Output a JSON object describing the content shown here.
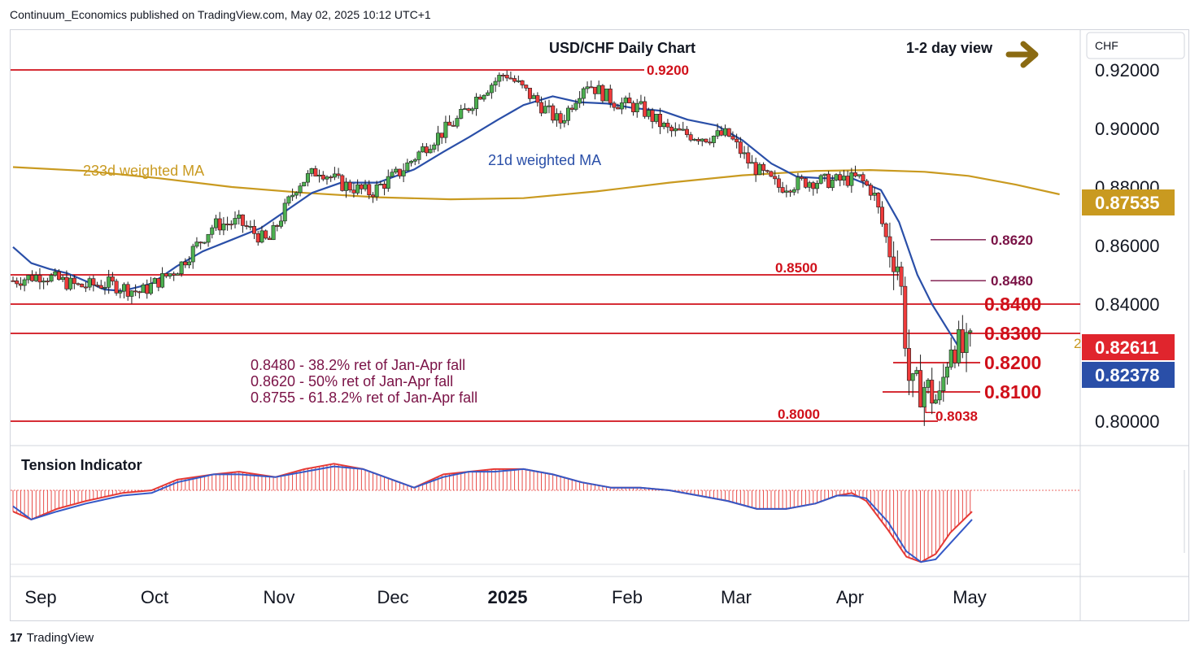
{
  "header": {
    "publisher_line": "Continuum_Economics published on TradingView.com, May 02, 2025 10:12 UTC+1"
  },
  "footer": {
    "brand": "TradingView",
    "logo_glyph": "17"
  },
  "colors": {
    "up_candle": "#4caf50",
    "down_candle": "#ef3b3b",
    "support_resistance": "#d0101a",
    "ma21": "#2a4fa8",
    "ma233": "#c99a20",
    "fib_text": "#7a1246",
    "level_text_small": "#d0101a",
    "arrow": "#8a6a12",
    "tension_red": "#e53935",
    "tension_blue": "#3559c7"
  },
  "chart_data": {
    "type": "candlestick",
    "title": "USD/CHF Daily Chart",
    "view_label": "1-2 day view",
    "currency": "CHF",
    "x_tick_labels": [
      "Sep",
      "Oct",
      "Nov",
      "Dec",
      "2025",
      "Feb",
      "Mar",
      "Apr",
      "May"
    ],
    "y_tick_labels": [
      "0.92000",
      "0.90000",
      "0.88000",
      "0.86000",
      "0.84000",
      "0.80000"
    ],
    "ylim": [
      0.796,
      0.934
    ],
    "price_badges": [
      {
        "label": "0.87535",
        "color": "#c99a20"
      },
      {
        "label": "0.82611",
        "color": "#e0252d"
      },
      {
        "label": "0.82378",
        "color": "#2a4fa8"
      }
    ],
    "levels": [
      {
        "value": 0.92,
        "label": "0.9200"
      },
      {
        "value": 0.85,
        "label": "0.8500"
      },
      {
        "value": 0.84,
        "label": "0.8400"
      },
      {
        "value": 0.83,
        "label": "0.8300"
      },
      {
        "value": 0.82,
        "label": "0.8200"
      },
      {
        "value": 0.81,
        "label": "0.8100"
      },
      {
        "value": 0.8,
        "label": "0.8000"
      },
      {
        "value": 0.8038,
        "label": "0.8038"
      },
      {
        "value": 0.862,
        "label": "0.8620"
      },
      {
        "value": 0.848,
        "label": "0.8480"
      }
    ],
    "annotations": {
      "ma233_label": "233d weighted MA",
      "ma21_label": "21d weighted MA",
      "fib_lines": [
        "0.8480 - 38.2% ret of Jan-Apr fall",
        "0.8620 - 50% ret of Jan-Apr fall",
        "0.8755 - 61.8.2% ret of Jan-Apr fall"
      ],
      "cut_label": "2"
    },
    "indicator": {
      "name": "Tension Indicator"
    },
    "series_ma233": [
      [
        0,
        0.8868
      ],
      [
        20,
        0.8855
      ],
      [
        40,
        0.883
      ],
      [
        60,
        0.88
      ],
      [
        80,
        0.878
      ],
      [
        100,
        0.8765
      ],
      [
        120,
        0.8758
      ],
      [
        140,
        0.8762
      ],
      [
        160,
        0.8785
      ],
      [
        180,
        0.8815
      ],
      [
        200,
        0.884
      ],
      [
        220,
        0.8855
      ],
      [
        235,
        0.8858
      ],
      [
        250,
        0.8852
      ],
      [
        262,
        0.8838
      ],
      [
        275,
        0.8808
      ],
      [
        287,
        0.8775
      ]
    ],
    "series_ma21": [
      [
        0,
        0.8595
      ],
      [
        5,
        0.854
      ],
      [
        10,
        0.852
      ],
      [
        15,
        0.8505
      ],
      [
        20,
        0.8478
      ],
      [
        25,
        0.845
      ],
      [
        30,
        0.8445
      ],
      [
        38,
        0.847
      ],
      [
        45,
        0.853
      ],
      [
        52,
        0.858
      ],
      [
        60,
        0.862
      ],
      [
        68,
        0.866
      ],
      [
        75,
        0.872
      ],
      [
        82,
        0.878
      ],
      [
        90,
        0.8815
      ],
      [
        100,
        0.8815
      ],
      [
        110,
        0.886
      ],
      [
        118,
        0.892
      ],
      [
        125,
        0.897
      ],
      [
        133,
        0.903
      ],
      [
        140,
        0.908
      ],
      [
        148,
        0.911
      ],
      [
        155,
        0.909
      ],
      [
        163,
        0.9085
      ],
      [
        170,
        0.907
      ],
      [
        178,
        0.906
      ],
      [
        185,
        0.903
      ],
      [
        193,
        0.901
      ],
      [
        200,
        0.896
      ],
      [
        208,
        0.888
      ],
      [
        215,
        0.8835
      ],
      [
        222,
        0.883
      ],
      [
        230,
        0.883
      ],
      [
        238,
        0.879
      ],
      [
        243,
        0.868
      ],
      [
        248,
        0.85
      ],
      [
        252,
        0.84
      ],
      [
        256,
        0.832
      ],
      [
        260,
        0.824
      ]
    ],
    "candles_trend": [
      [
        0,
        0.848
      ],
      [
        8,
        0.85
      ],
      [
        18,
        0.846
      ],
      [
        26,
        0.847
      ],
      [
        35,
        0.844
      ],
      [
        45,
        0.852
      ],
      [
        55,
        0.867
      ],
      [
        62,
        0.868
      ],
      [
        70,
        0.861
      ],
      [
        78,
        0.881
      ],
      [
        84,
        0.886
      ],
      [
        90,
        0.881
      ],
      [
        98,
        0.878
      ],
      [
        106,
        0.885
      ],
      [
        114,
        0.895
      ],
      [
        122,
        0.903
      ],
      [
        128,
        0.912
      ],
      [
        135,
        0.919
      ],
      [
        142,
        0.911
      ],
      [
        150,
        0.902
      ],
      [
        157,
        0.916
      ],
      [
        165,
        0.909
      ],
      [
        172,
        0.907
      ],
      [
        180,
        0.899
      ],
      [
        190,
        0.897
      ],
      [
        196,
        0.898
      ],
      [
        202,
        0.888
      ],
      [
        210,
        0.88
      ],
      [
        218,
        0.882
      ],
      [
        225,
        0.882
      ],
      [
        232,
        0.883
      ],
      [
        236,
        0.878
      ],
      [
        240,
        0.86
      ],
      [
        243,
        0.853
      ],
      [
        246,
        0.81
      ],
      [
        250,
        0.812
      ],
      [
        254,
        0.806
      ],
      [
        257,
        0.828
      ],
      [
        261,
        0.823
      ],
      [
        263,
        0.826
      ]
    ],
    "tension": {
      "xlim": [
        0,
        263
      ],
      "ylim": [
        -30,
        30
      ],
      "red_series": [
        [
          0,
          -8
        ],
        [
          5,
          -11
        ],
        [
          12,
          -7
        ],
        [
          20,
          -4
        ],
        [
          30,
          -1
        ],
        [
          38,
          0
        ],
        [
          45,
          4
        ],
        [
          55,
          6
        ],
        [
          62,
          7
        ],
        [
          72,
          5
        ],
        [
          80,
          8
        ],
        [
          88,
          10
        ],
        [
          96,
          8
        ],
        [
          104,
          4
        ],
        [
          110,
          1
        ],
        [
          118,
          6
        ],
        [
          125,
          7
        ],
        [
          132,
          8
        ],
        [
          140,
          8
        ],
        [
          148,
          6
        ],
        [
          156,
          3
        ],
        [
          164,
          1
        ],
        [
          172,
          1
        ],
        [
          180,
          0
        ],
        [
          188,
          -2
        ],
        [
          196,
          -4
        ],
        [
          204,
          -7
        ],
        [
          212,
          -7
        ],
        [
          220,
          -5
        ],
        [
          226,
          -2
        ],
        [
          230,
          -1
        ],
        [
          234,
          -4
        ],
        [
          240,
          -15
        ],
        [
          245,
          -25
        ],
        [
          249,
          -27
        ],
        [
          253,
          -24
        ],
        [
          257,
          -16
        ],
        [
          263,
          -8
        ]
      ],
      "blue_series": [
        [
          0,
          -6
        ],
        [
          5,
          -11
        ],
        [
          12,
          -8
        ],
        [
          20,
          -5
        ],
        [
          30,
          -2
        ],
        [
          38,
          -1
        ],
        [
          45,
          3
        ],
        [
          55,
          6
        ],
        [
          62,
          6
        ],
        [
          72,
          5
        ],
        [
          80,
          7
        ],
        [
          88,
          9
        ],
        [
          96,
          8
        ],
        [
          104,
          4
        ],
        [
          110,
          1
        ],
        [
          118,
          5
        ],
        [
          125,
          7
        ],
        [
          132,
          7
        ],
        [
          140,
          8
        ],
        [
          148,
          6
        ],
        [
          156,
          3
        ],
        [
          164,
          1
        ],
        [
          172,
          1
        ],
        [
          180,
          0
        ],
        [
          188,
          -2
        ],
        [
          196,
          -4
        ],
        [
          204,
          -7
        ],
        [
          212,
          -7
        ],
        [
          220,
          -5
        ],
        [
          226,
          -2
        ],
        [
          230,
          -2
        ],
        [
          234,
          -3
        ],
        [
          240,
          -12
        ],
        [
          245,
          -23
        ],
        [
          249,
          -27
        ],
        [
          253,
          -26
        ],
        [
          257,
          -20
        ],
        [
          263,
          -11
        ]
      ]
    }
  }
}
